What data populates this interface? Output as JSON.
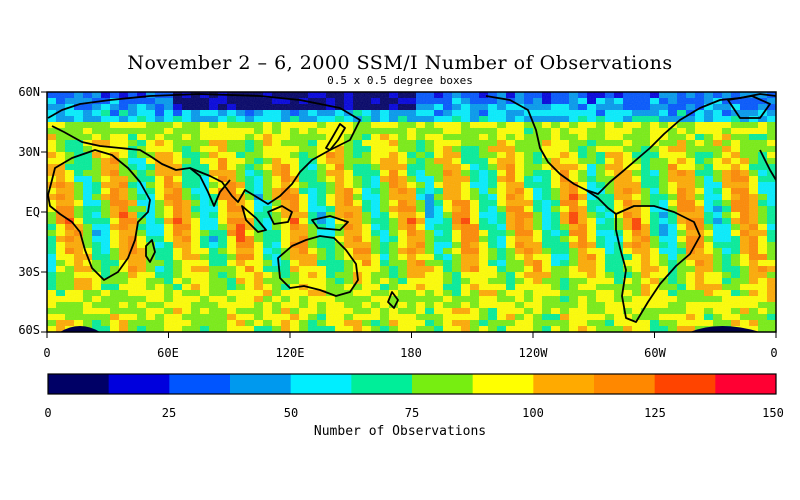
{
  "title": "November 2 – 6, 2000 SSM/I Number of Observations",
  "subtitle": "0.5 x 0.5 degree boxes",
  "map": {
    "lat_labels": [
      "60N",
      "30N",
      "EQ",
      "30S",
      "60S"
    ],
    "lon_labels": [
      "0",
      "60E",
      "120E",
      "180",
      "120W",
      "60W",
      "0"
    ],
    "lat_range": [
      -60,
      60
    ],
    "lon_range": [
      0,
      360
    ]
  },
  "colorbar": {
    "label": "Number of Observations",
    "ticks": [
      "0",
      "25",
      "50",
      "75",
      "100",
      "125",
      "150"
    ],
    "range": [
      0,
      150
    ],
    "colors": [
      "#000066",
      "#0000dd",
      "#0055ff",
      "#0099ee",
      "#00eeff",
      "#00ee99",
      "#77ee11",
      "#ffff00",
      "#ffaa00",
      "#ff8800",
      "#ff4400",
      "#ff0033"
    ]
  }
}
